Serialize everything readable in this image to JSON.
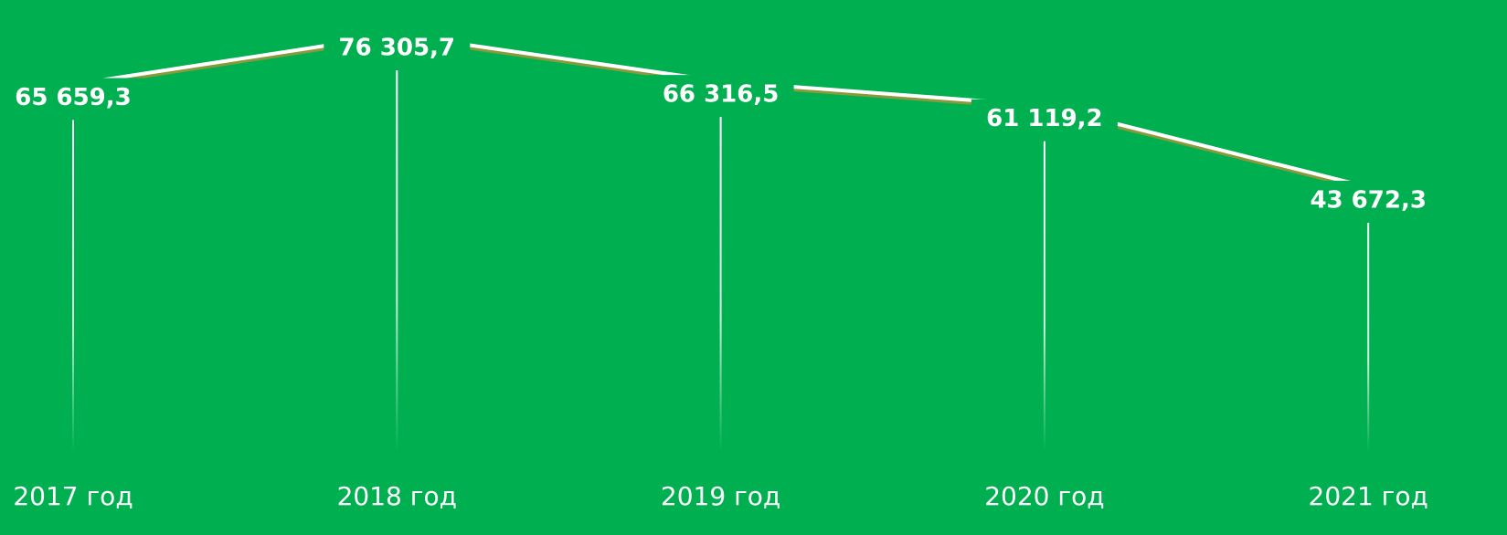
{
  "chart_data": {
    "type": "line",
    "categories": [
      "2017 год",
      "2018 год",
      "2019 год",
      "2020 год",
      "2021 год"
    ],
    "series": [
      {
        "color": "#ffffff",
        "values": [
          65659.3,
          76305.7,
          66316.5,
          61119.2,
          43672.3
        ],
        "value_labels": [
          "65 659,3",
          "76 305,7",
          "66 316,5",
          "61 119,2",
          "43 672,3"
        ]
      }
    ]
  }
}
